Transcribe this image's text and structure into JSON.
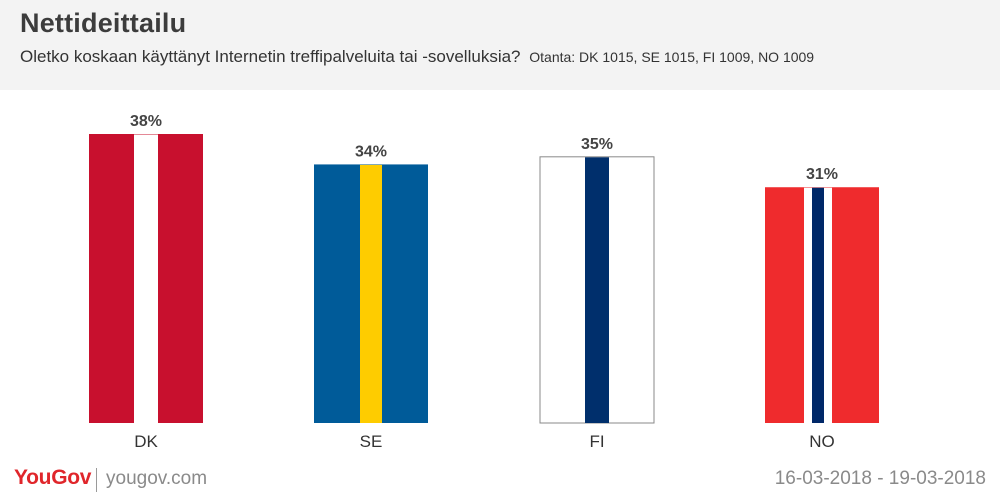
{
  "header": {
    "title": "Nettideittailu",
    "question": "Oletko koskaan käyttänyt Internetin treffipalveluita tai -sovelluksia?",
    "sample": "Otanta: DK 1015, SE 1015, FI 1009, NO 1009"
  },
  "footer": {
    "logo": "YouGov",
    "site": "yougov.com",
    "date_range": "16-03-2018 - 19-03-2018"
  },
  "chart_data": {
    "type": "bar",
    "categories": [
      "DK",
      "SE",
      "FI",
      "NO"
    ],
    "values": [
      38,
      34,
      35,
      31
    ],
    "value_labels": [
      "38%",
      "34%",
      "35%",
      "31%"
    ],
    "unit": "%",
    "ylim": [
      0,
      38
    ],
    "grid": false,
    "legend": "none",
    "flags": {
      "DK": {
        "field": "#c8102e",
        "cross": "#ffffff"
      },
      "SE": {
        "field": "#005b99",
        "cross": "#fecc00"
      },
      "FI": {
        "field": "#ffffff",
        "cross": "#002f6c",
        "border": "#888888"
      },
      "NO": {
        "field": "#ef2b2d",
        "cross": "#ffffff",
        "inner": "#002868"
      }
    }
  }
}
